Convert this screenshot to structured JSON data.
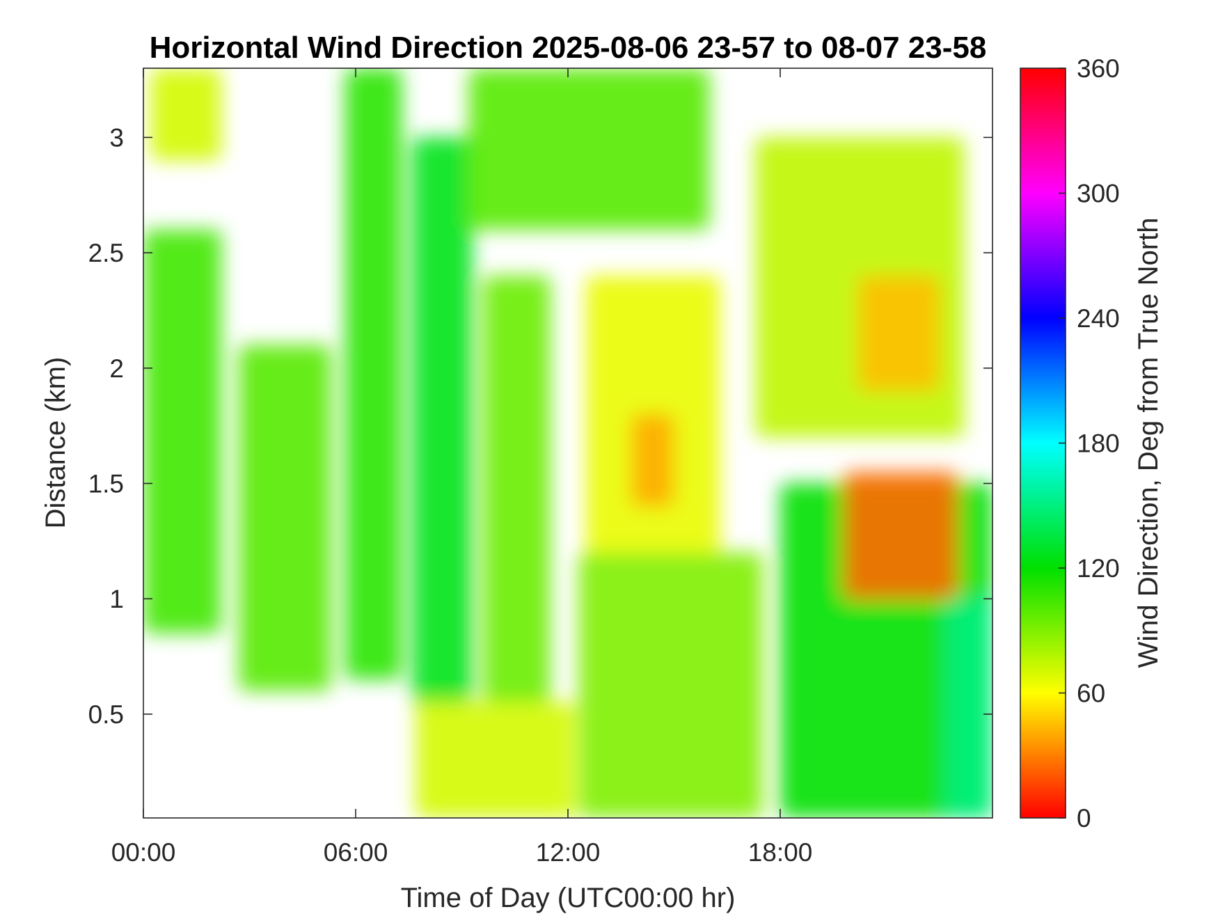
{
  "chart_data": {
    "type": "heatmap",
    "title": "Horizontal Wind Direction 2025-08-06 23-57 to 08-07 23-58",
    "xlabel": "Time of Day (UTC00:00 hr)",
    "ylabel": "Distance (km)",
    "colorbar_label": "Wind Direction, Deg from True North",
    "x_unit": "hours",
    "xlim": [
      0,
      24
    ],
    "ylim": [
      0.05,
      3.3
    ],
    "clim": [
      0,
      360
    ],
    "x_ticks": [
      {
        "value": 0,
        "label": "00:00"
      },
      {
        "value": 6,
        "label": "06:00"
      },
      {
        "value": 12,
        "label": "12:00"
      },
      {
        "value": 18,
        "label": "18:00"
      }
    ],
    "y_ticks": [
      {
        "value": 0.5,
        "label": "0.5"
      },
      {
        "value": 1,
        "label": "1"
      },
      {
        "value": 1.5,
        "label": "1.5"
      },
      {
        "value": 2,
        "label": "2"
      },
      {
        "value": 2.5,
        "label": "2.5"
      },
      {
        "value": 3,
        "label": "3"
      }
    ],
    "colorbar_ticks": [
      {
        "value": 0,
        "label": "0"
      },
      {
        "value": 60,
        "label": "60"
      },
      {
        "value": 120,
        "label": "120"
      },
      {
        "value": 180,
        "label": "180"
      },
      {
        "value": 240,
        "label": "240"
      },
      {
        "value": 300,
        "label": "300"
      },
      {
        "value": 360,
        "label": "360"
      }
    ],
    "colormap": [
      "#ff0000",
      "#ffff00",
      "#00e000",
      "#00ffff",
      "#0000ff",
      "#ff00ff",
      "#ff0000"
    ],
    "missing_color": "#ffffff",
    "regions": [
      {
        "x": [
          0,
          2.2
        ],
        "y": [
          0.85,
          2.6
        ],
        "value": 105
      },
      {
        "x": [
          0.2,
          2.2
        ],
        "y": [
          2.9,
          3.3
        ],
        "value": 70
      },
      {
        "x": [
          2.7,
          5.3
        ],
        "y": [
          0.6,
          2.1
        ],
        "value": 100
      },
      {
        "x": [
          5.7,
          7.3
        ],
        "y": [
          0.65,
          3.3
        ],
        "value": 110
      },
      {
        "x": [
          7.6,
          9.3
        ],
        "y": [
          0.55,
          3.0
        ],
        "value": 125
      },
      {
        "x": [
          9.6,
          11.5
        ],
        "y": [
          0.55,
          2.4
        ],
        "value": 95
      },
      {
        "x": [
          7.7,
          12.2
        ],
        "y": [
          0.05,
          0.55
        ],
        "value": 70
      },
      {
        "x": [
          9.2,
          16.0
        ],
        "y": [
          2.6,
          3.3
        ],
        "value": 100
      },
      {
        "x": [
          12.5,
          16.3
        ],
        "y": [
          1.2,
          2.4
        ],
        "value": 65
      },
      {
        "x": [
          13.8,
          15.0
        ],
        "y": [
          1.4,
          1.8
        ],
        "value": 40
      },
      {
        "x": [
          12.3,
          17.5
        ],
        "y": [
          0.05,
          1.2
        ],
        "value": 90
      },
      {
        "x": [
          17.3,
          23.2
        ],
        "y": [
          1.7,
          3.0
        ],
        "value": 75
      },
      {
        "x": [
          20.2,
          22.5
        ],
        "y": [
          1.9,
          2.4
        ],
        "value": 45
      },
      {
        "x": [
          18.0,
          24.0
        ],
        "y": [
          0.05,
          1.5
        ],
        "value": 120
      },
      {
        "x": [
          19.8,
          23.0
        ],
        "y": [
          1.0,
          1.55
        ],
        "value": 25
      },
      {
        "x": [
          22.7,
          24.0
        ],
        "y": [
          0.05,
          1.0
        ],
        "value": 150
      }
    ]
  }
}
